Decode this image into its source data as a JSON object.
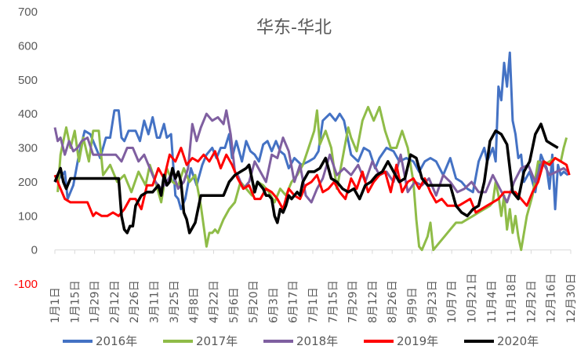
{
  "chart_data": {
    "type": "line",
    "title": "华东-华北",
    "xlabel": "",
    "ylabel": "",
    "ylim": [
      -100,
      700
    ],
    "y_ticks": [
      700,
      600,
      500,
      400,
      300,
      200,
      100,
      0,
      -100
    ],
    "negative_tick_color": "#ff0000",
    "x_ticks": [
      "1月1日",
      "1月15日",
      "1月29日",
      "2月12日",
      "2月26日",
      "3月11日",
      "3月25日",
      "4月8日",
      "4月22日",
      "5月6日",
      "5月20日",
      "6月3日",
      "6月17日",
      "7月1日",
      "7月15日",
      "7月29日",
      "8月12日",
      "8月26日",
      "9月9日",
      "9月23日",
      "10月7日",
      "10月21日",
      "11月4日",
      "11月18日",
      "12月2日",
      "12月16日",
      "12月30日"
    ],
    "x_unit": "day_of_year",
    "legend_position": "bottom",
    "grid": false,
    "series": [
      {
        "name": "2016年",
        "color": "#4472c4",
        "width": 3,
        "x": [
          1,
          4,
          8,
          10,
          14,
          18,
          22,
          26,
          30,
          33,
          37,
          40,
          43,
          46,
          48,
          50,
          53,
          55,
          58,
          61,
          64,
          67,
          70,
          73,
          75,
          78,
          80,
          83,
          86,
          88,
          90,
          93,
          97,
          101,
          105,
          108,
          112,
          115,
          118,
          121,
          124,
          126,
          129,
          133,
          136,
          139,
          142,
          145,
          148,
          151,
          154,
          157,
          160,
          163,
          166,
          170,
          175,
          180,
          184,
          187,
          190,
          195,
          199,
          202,
          205,
          210,
          215,
          219,
          223,
          227,
          230,
          235,
          240,
          244,
          249,
          254,
          258,
          262,
          266,
          270,
          275,
          280,
          284,
          288,
          292,
          296,
          300,
          304,
          306,
          310,
          312,
          314,
          316,
          318,
          320,
          322,
          324,
          326,
          328,
          330,
          332,
          336,
          340,
          344,
          348,
          350,
          352,
          354,
          356,
          358,
          360,
          363
        ],
        "y": [
          200,
          210,
          230,
          150,
          190,
          280,
          350,
          340,
          300,
          270,
          330,
          330,
          410,
          410,
          330,
          320,
          350,
          350,
          350,
          320,
          380,
          340,
          390,
          330,
          330,
          370,
          330,
          340,
          160,
          150,
          120,
          150,
          240,
          190,
          250,
          280,
          300,
          270,
          300,
          300,
          340,
          270,
          320,
          260,
          320,
          290,
          280,
          260,
          310,
          320,
          290,
          320,
          290,
          280,
          240,
          270,
          250,
          260,
          270,
          290,
          380,
          400,
          380,
          400,
          380,
          280,
          260,
          300,
          290,
          240,
          270,
          300,
          290,
          260,
          270,
          260,
          230,
          260,
          270,
          260,
          220,
          270,
          210,
          200,
          180,
          170,
          260,
          300,
          260,
          300,
          260,
          480,
          440,
          550,
          480,
          580,
          380,
          340,
          270,
          280,
          200,
          230,
          170,
          280,
          240,
          180,
          280,
          120,
          250,
          220,
          230,
          220
        ]
      },
      {
        "name": "2017年",
        "color": "#8fbc48",
        "width": 3,
        "x": [
          3,
          5,
          7,
          9,
          12,
          15,
          18,
          21,
          25,
          28,
          32,
          35,
          40,
          45,
          50,
          55,
          60,
          65,
          68,
          72,
          76,
          80,
          84,
          88,
          92,
          96,
          100,
          104,
          108,
          110,
          112,
          114,
          116,
          120,
          124,
          128,
          132,
          136,
          140,
          144,
          148,
          152,
          156,
          160,
          164,
          168,
          172,
          176,
          180,
          184,
          186,
          188,
          192,
          196,
          200,
          204,
          208,
          210,
          214,
          218,
          222,
          226,
          230,
          234,
          238,
          242,
          246,
          250,
          254,
          256,
          258,
          260,
          262,
          264,
          266,
          268,
          270,
          272,
          276,
          280,
          284,
          288,
          292,
          296,
          300,
          304,
          308,
          310,
          312,
          314,
          316,
          318,
          320,
          322,
          324,
          326,
          328,
          330,
          334,
          338,
          342,
          346,
          350,
          354,
          358,
          360,
          362
        ],
        "y": [
          170,
          280,
          320,
          360,
          300,
          350,
          260,
          330,
          260,
          350,
          350,
          220,
          250,
          200,
          220,
          170,
          230,
          190,
          250,
          200,
          140,
          240,
          200,
          190,
          240,
          200,
          220,
          130,
          10,
          50,
          50,
          60,
          50,
          90,
          120,
          140,
          200,
          180,
          160,
          200,
          190,
          170,
          140,
          180,
          160,
          200,
          220,
          250,
          300,
          350,
          410,
          310,
          350,
          300,
          180,
          270,
          360,
          330,
          290,
          380,
          420,
          380,
          420,
          350,
          300,
          300,
          350,
          300,
          200,
          90,
          10,
          0,
          20,
          40,
          80,
          0,
          10,
          20,
          40,
          60,
          80,
          80,
          90,
          100,
          110,
          120,
          130,
          140,
          200,
          160,
          100,
          160,
          60,
          120,
          50,
          100,
          40,
          0,
          100,
          160,
          260,
          250,
          260,
          270,
          260,
          300,
          330
        ]
      },
      {
        "name": "2018年",
        "color": "#7f5fa0",
        "width": 3,
        "x": [
          1,
          3,
          5,
          8,
          11,
          14,
          17,
          20,
          24,
          28,
          32,
          36,
          40,
          44,
          48,
          52,
          56,
          60,
          64,
          68,
          72,
          76,
          80,
          84,
          88,
          92,
          95,
          98,
          101,
          104,
          108,
          112,
          116,
          120,
          122,
          125,
          128,
          130,
          134,
          138,
          142,
          146,
          150,
          154,
          158,
          162,
          166,
          170,
          174,
          178,
          182,
          186,
          190,
          195,
          200,
          205,
          210,
          215,
          220,
          225,
          230,
          235,
          240,
          245,
          250,
          255,
          260,
          265,
          270,
          275,
          280,
          285,
          290,
          295,
          300,
          305,
          310,
          315,
          320,
          325,
          330,
          335,
          340,
          345,
          350,
          355,
          360,
          363
        ],
        "y": [
          360,
          320,
          330,
          280,
          320,
          290,
          300,
          320,
          330,
          280,
          280,
          280,
          280,
          280,
          260,
          300,
          300,
          260,
          280,
          240,
          200,
          180,
          200,
          230,
          180,
          200,
          240,
          370,
          320,
          360,
          400,
          380,
          390,
          370,
          410,
          340,
          230,
          220,
          180,
          200,
          260,
          230,
          200,
          280,
          270,
          330,
          290,
          200,
          250,
          160,
          140,
          180,
          210,
          280,
          220,
          240,
          220,
          250,
          200,
          260,
          220,
          230,
          200,
          280,
          170,
          200,
          190,
          210,
          160,
          220,
          200,
          170,
          180,
          200,
          170,
          170,
          220,
          180,
          140,
          200,
          240,
          250,
          200,
          260,
          220,
          230,
          240,
          230
        ]
      },
      {
        "name": "2019年",
        "color": "#ff0000",
        "width": 3,
        "x": [
          1,
          3,
          5,
          8,
          12,
          16,
          20,
          24,
          28,
          30,
          34,
          38,
          42,
          46,
          50,
          54,
          58,
          62,
          66,
          70,
          74,
          78,
          82,
          86,
          90,
          94,
          98,
          102,
          106,
          110,
          114,
          118,
          122,
          126,
          130,
          134,
          138,
          142,
          146,
          150,
          154,
          158,
          162,
          166,
          170,
          174,
          178,
          182,
          186,
          190,
          194,
          198,
          202,
          206,
          210,
          214,
          218,
          222,
          226,
          230,
          234,
          238,
          242,
          246,
          250,
          254,
          258,
          262,
          266,
          270,
          274,
          278,
          282,
          286,
          290,
          294,
          298,
          302,
          306,
          310,
          314,
          318,
          322,
          326,
          330,
          334,
          338,
          342,
          346,
          350,
          354,
          358,
          362,
          364
        ],
        "y": [
          220,
          200,
          180,
          150,
          140,
          140,
          140,
          140,
          100,
          110,
          100,
          100,
          110,
          100,
          120,
          150,
          150,
          120,
          190,
          190,
          240,
          210,
          280,
          260,
          300,
          250,
          270,
          260,
          280,
          260,
          290,
          240,
          280,
          250,
          210,
          180,
          190,
          150,
          150,
          180,
          170,
          150,
          120,
          180,
          160,
          150,
          190,
          200,
          220,
          170,
          180,
          200,
          170,
          150,
          210,
          180,
          230,
          170,
          200,
          220,
          230,
          170,
          250,
          170,
          200,
          210,
          180,
          210,
          170,
          140,
          150,
          130,
          130,
          130,
          140,
          150,
          110,
          120,
          130,
          140,
          150,
          170,
          170,
          170,
          150,
          130,
          170,
          200,
          260,
          250,
          270,
          260,
          250,
          220
        ]
      },
      {
        "name": "2020年",
        "color": "#000000",
        "width": 3.5,
        "x": [
          1,
          3,
          5,
          7,
          9,
          12,
          16,
          20,
          24,
          28,
          32,
          36,
          40,
          42,
          44,
          46,
          48,
          50,
          52,
          54,
          56,
          58,
          62,
          66,
          70,
          74,
          76,
          78,
          80,
          82,
          84,
          86,
          88,
          90,
          92,
          94,
          96,
          100,
          104,
          108,
          112,
          116,
          120,
          124,
          128,
          132,
          136,
          138,
          140,
          142,
          144,
          146,
          148,
          150,
          152,
          154,
          156,
          158,
          160,
          162,
          164,
          166,
          168,
          170,
          172,
          174,
          176,
          180,
          184,
          188,
          192,
          196,
          200,
          204,
          208,
          212,
          216,
          220,
          224,
          228,
          232,
          236,
          240,
          244,
          248,
          252,
          256,
          260,
          264,
          268,
          272,
          276,
          280,
          284,
          288,
          292,
          296,
          300,
          304,
          308,
          312,
          316,
          320,
          324,
          328,
          332,
          336,
          340,
          344,
          348,
          352,
          356
        ],
        "y": [
          200,
          220,
          240,
          200,
          180,
          210,
          210,
          210,
          210,
          210,
          210,
          210,
          210,
          210,
          210,
          210,
          100,
          60,
          50,
          70,
          70,
          130,
          160,
          170,
          170,
          190,
          160,
          220,
          190,
          200,
          240,
          210,
          230,
          200,
          110,
          90,
          50,
          80,
          160,
          160,
          160,
          160,
          160,
          200,
          220,
          230,
          240,
          250,
          210,
          170,
          200,
          190,
          180,
          160,
          160,
          150,
          100,
          80,
          120,
          110,
          130,
          160,
          150,
          160,
          170,
          160,
          200,
          230,
          230,
          240,
          270,
          210,
          200,
          180,
          170,
          180,
          150,
          190,
          200,
          220,
          230,
          260,
          230,
          200,
          210,
          280,
          270,
          210,
          190,
          190,
          190,
          190,
          190,
          130,
          110,
          100,
          120,
          130,
          200,
          320,
          350,
          340,
          310,
          170,
          150,
          230,
          260,
          340,
          370,
          320,
          310,
          300
        ]
      }
    ]
  }
}
